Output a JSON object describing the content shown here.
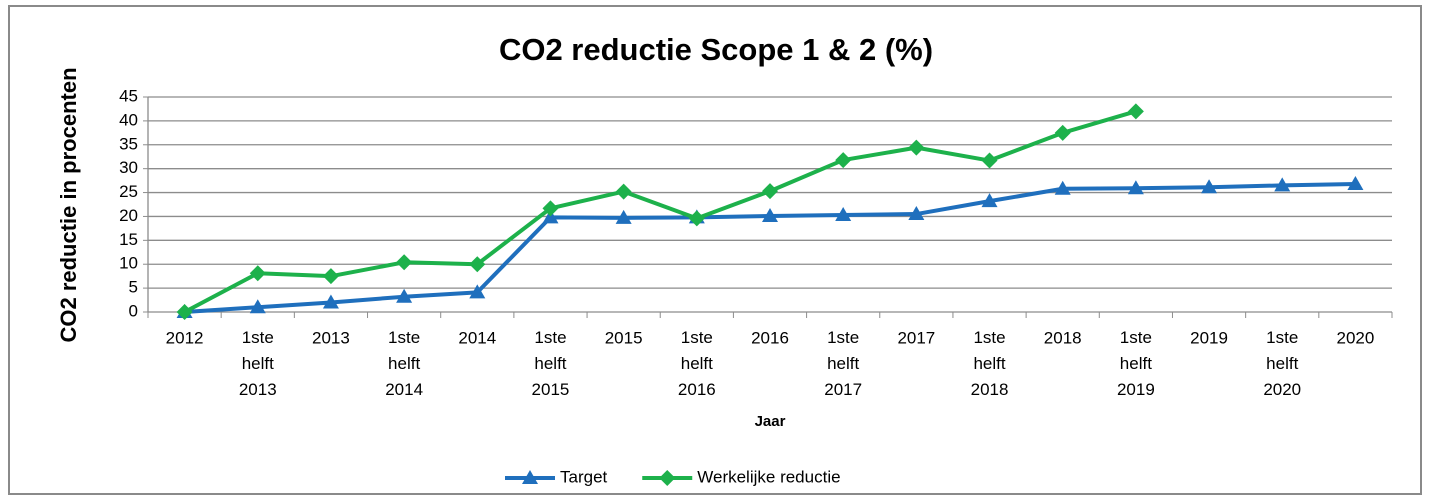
{
  "chart_data": {
    "type": "line",
    "title": "CO2 reductie Scope 1 & 2 (%)",
    "x_label": "Jaar",
    "y_label": "CO2 reductie in procenten",
    "categories": [
      "2012",
      "1ste helft 2013",
      "2013",
      "1ste helft 2014",
      "2014",
      "1ste helft 2015",
      "2015",
      "1ste helft 2016",
      "2016",
      "1ste helft 2017",
      "2017",
      "1ste helft 2018",
      "2018",
      "1ste helft 2019",
      "2019",
      "1ste helft 2020",
      "2020"
    ],
    "series": [
      {
        "name": "Target",
        "color": "#1f6fbd",
        "marker": "triangle",
        "values": [
          0,
          1,
          2,
          3.2,
          4.1,
          19.8,
          19.7,
          19.8,
          20.1,
          20.3,
          20.5,
          23.2,
          25.8,
          25.9,
          26.1,
          26.5,
          26.8
        ]
      },
      {
        "name": "Werkelijke reductie",
        "color": "#1db14b",
        "marker": "diamond",
        "values": [
          0,
          8.1,
          7.5,
          10.4,
          10,
          21.7,
          25.2,
          19.6,
          25.3,
          31.8,
          34.4,
          31.7,
          37.5,
          42,
          null,
          null,
          null
        ]
      }
    ],
    "ylim": [
      0,
      45
    ],
    "yticks": [
      0,
      5,
      10,
      15,
      20,
      25,
      30,
      35,
      40,
      45
    ],
    "grid": true,
    "legend": "bottom"
  }
}
